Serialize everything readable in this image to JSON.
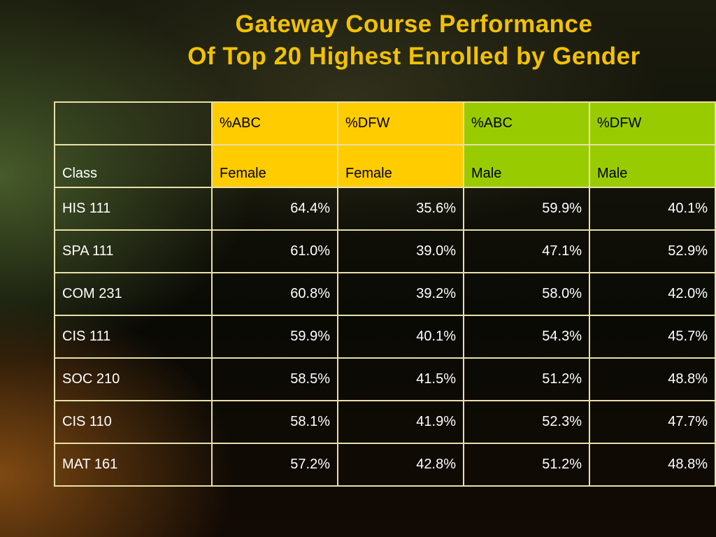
{
  "slide": {
    "title_line1": "Gateway Course Performance",
    "title_line2": "Of Top 20 Highest Enrolled by Gender"
  },
  "colors": {
    "title": "#f2c200",
    "female_header": "#ffcc00",
    "male_header": "#99cc00",
    "border": "#e8e0a8"
  },
  "table": {
    "header_row1": [
      "",
      "%ABC",
      "%DFW",
      "%ABC",
      "%DFW"
    ],
    "header_row2": [
      "Class",
      "Female",
      "Female",
      "Male",
      "Male"
    ],
    "rows": [
      [
        "HIS 111",
        "64.4%",
        "35.6%",
        "59.9%",
        "40.1%"
      ],
      [
        "SPA 111",
        "61.0%",
        "39.0%",
        "47.1%",
        "52.9%"
      ],
      [
        "COM 231",
        "60.8%",
        "39.2%",
        "58.0%",
        "42.0%"
      ],
      [
        "CIS 111",
        "59.9%",
        "40.1%",
        "54.3%",
        "45.7%"
      ],
      [
        "SOC 210",
        "58.5%",
        "41.5%",
        "51.2%",
        "48.8%"
      ],
      [
        "CIS 110",
        "58.1%",
        "41.9%",
        "52.3%",
        "47.7%"
      ],
      [
        "MAT 161",
        "57.2%",
        "42.8%",
        "51.2%",
        "48.8%"
      ]
    ]
  }
}
